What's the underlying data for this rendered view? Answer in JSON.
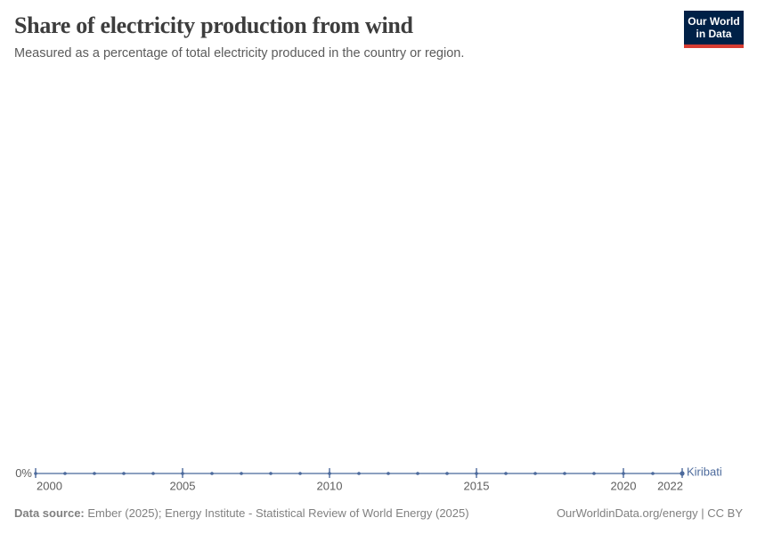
{
  "header": {
    "title": "Share of electricity production from wind",
    "subtitle": "Measured as a percentage of total electricity produced in the country or region."
  },
  "logo": {
    "line1": "Our World",
    "line2": "in Data"
  },
  "chart_data": {
    "type": "line",
    "title": "Share of electricity production from wind",
    "subtitle": "Measured as a percentage of total electricity produced in the country or region.",
    "unit": "%",
    "grid": false,
    "legend": "end-of-line-label",
    "xlim": [
      2000,
      2022
    ],
    "x": [
      2000,
      2001,
      2002,
      2003,
      2004,
      2005,
      2006,
      2007,
      2008,
      2009,
      2010,
      2011,
      2012,
      2013,
      2014,
      2015,
      2016,
      2017,
      2018,
      2019,
      2020,
      2021,
      2022
    ],
    "series": [
      {
        "name": "Kiribati",
        "values": [
          0,
          0,
          0,
          0,
          0,
          0,
          0,
          0,
          0,
          0,
          0,
          0,
          0,
          0,
          0,
          0,
          0,
          0,
          0,
          0,
          0,
          0,
          0
        ]
      }
    ],
    "x_tick_years": [
      2000,
      2005,
      2010,
      2015,
      2020,
      2022
    ],
    "x_tick_labels": [
      "2000",
      "2005",
      "2010",
      "2015",
      "2020",
      "2022"
    ],
    "y_tick_labels": [
      "0%"
    ]
  },
  "footer": {
    "source_label": "Data source:",
    "source_text": " Ember (2025); Energy Institute - Statistical Review of World Energy (2025)",
    "right_text": "OurWorldinData.org/energy | CC BY"
  },
  "colors": {
    "accent_line": "#4c6a9c",
    "logo_bg": "#002147",
    "logo_accent": "#d73c32",
    "title": "#3d3d3d",
    "subtitle": "#5b5b5b",
    "axis_label": "#5e5e5e",
    "footer": "#808080"
  }
}
